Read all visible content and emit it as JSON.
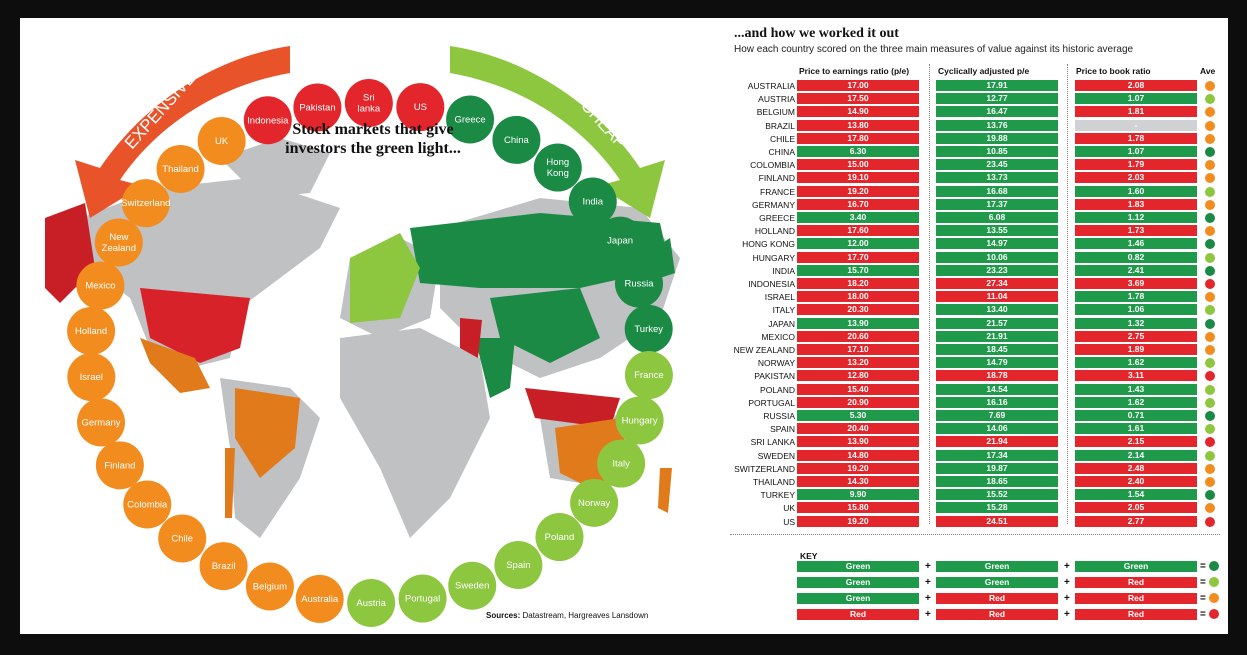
{
  "title": "Stock markets that give investors the green light...",
  "arrow_labels": {
    "expensive": "EXPENSIVE",
    "cheap": "CHEAP"
  },
  "sources_label": "Sources:",
  "sources_text": "Datastream, Hargreaves Lansdown",
  "right_title": "...and how we worked it out",
  "right_subtitle": "How each country scored on the three main measures of value against its historic average",
  "colors": {
    "green": "#1f9a4a",
    "red": "#e3262b",
    "grey": "#cfd1d3",
    "dark_green": "#1a8a45",
    "light_green": "#8dc63f",
    "orange": "#f28c1e",
    "red_dot": "#e3262b"
  },
  "circle_countries": [
    {
      "name": "UK",
      "color": "#f28c1e"
    },
    {
      "name": "Indonesia",
      "color": "#e3262b"
    },
    {
      "name": "Pakistan",
      "color": "#e3262b"
    },
    {
      "name": "Sri lanka",
      "color": "#e3262b"
    },
    {
      "name": "US",
      "color": "#e3262b"
    },
    {
      "name": "Greece",
      "color": "#1a8a45"
    },
    {
      "name": "China",
      "color": "#1a8a45"
    },
    {
      "name": "Hong Kong",
      "color": "#1a8a45"
    },
    {
      "name": "India",
      "color": "#1a8a45"
    },
    {
      "name": "Japan",
      "color": "#1a8a45"
    },
    {
      "name": "Russia",
      "color": "#1a8a45"
    },
    {
      "name": "Turkey",
      "color": "#1a8a45"
    },
    {
      "name": "France",
      "color": "#8dc63f"
    },
    {
      "name": "Hungary",
      "color": "#8dc63f"
    },
    {
      "name": "Italy",
      "color": "#8dc63f"
    },
    {
      "name": "Norway",
      "color": "#8dc63f"
    },
    {
      "name": "Poland",
      "color": "#8dc63f"
    },
    {
      "name": "Spain",
      "color": "#8dc63f"
    },
    {
      "name": "Sweden",
      "color": "#8dc63f"
    },
    {
      "name": "Portugal",
      "color": "#8dc63f"
    },
    {
      "name": "Austria",
      "color": "#8dc63f"
    },
    {
      "name": "Australia",
      "color": "#f28c1e"
    },
    {
      "name": "Belgium",
      "color": "#f28c1e"
    },
    {
      "name": "Brazil",
      "color": "#f28c1e"
    },
    {
      "name": "Chile",
      "color": "#f28c1e"
    },
    {
      "name": "Colombia",
      "color": "#f28c1e"
    },
    {
      "name": "Finland",
      "color": "#f28c1e"
    },
    {
      "name": "Germany",
      "color": "#f28c1e"
    },
    {
      "name": "Israel",
      "color": "#f28c1e"
    },
    {
      "name": "Holland",
      "color": "#f28c1e"
    },
    {
      "name": "Mexico",
      "color": "#f28c1e"
    },
    {
      "name": "New Zealand",
      "color": "#f28c1e"
    },
    {
      "name": "Switzerland",
      "color": "#f28c1e"
    },
    {
      "name": "Thailand",
      "color": "#f28c1e"
    }
  ],
  "chart_data": {
    "type": "table",
    "columns": [
      "Price to earnings ratio (p/e)",
      "Cyclically adjusted p/e",
      "Price to book ratio",
      "Ave"
    ],
    "rows": [
      {
        "country": "AUSTRALIA",
        "pe": "17.00",
        "pe_c": "red",
        "cape": "17.91",
        "cape_c": "green",
        "pb": "2.08",
        "pb_c": "red",
        "ave": "orange"
      },
      {
        "country": "AUSTRIA",
        "pe": "17.50",
        "pe_c": "red",
        "cape": "12.77",
        "cape_c": "green",
        "pb": "1.07",
        "pb_c": "green",
        "ave": "light_green"
      },
      {
        "country": "BELGIUM",
        "pe": "14.90",
        "pe_c": "red",
        "cape": "16.47",
        "cape_c": "green",
        "pb": "1.81",
        "pb_c": "red",
        "ave": "orange"
      },
      {
        "country": "BRAZIL",
        "pe": "13.80",
        "pe_c": "red",
        "cape": "13.76",
        "cape_c": "green",
        "pb": "-",
        "pb_c": "grey",
        "ave": "orange"
      },
      {
        "country": "CHILE",
        "pe": "17.80",
        "pe_c": "red",
        "cape": "19.88",
        "cape_c": "green",
        "pb": "1.78",
        "pb_c": "red",
        "ave": "orange"
      },
      {
        "country": "CHINA",
        "pe": "6.30",
        "pe_c": "green",
        "cape": "10.85",
        "cape_c": "green",
        "pb": "1.07",
        "pb_c": "green",
        "ave": "dark_green"
      },
      {
        "country": "COLOMBIA",
        "pe": "15.00",
        "pe_c": "red",
        "cape": "23.45",
        "cape_c": "green",
        "pb": "1.79",
        "pb_c": "red",
        "ave": "orange"
      },
      {
        "country": "FINLAND",
        "pe": "19.10",
        "pe_c": "red",
        "cape": "13.73",
        "cape_c": "green",
        "pb": "2.03",
        "pb_c": "red",
        "ave": "orange"
      },
      {
        "country": "FRANCE",
        "pe": "19.20",
        "pe_c": "red",
        "cape": "16.68",
        "cape_c": "green",
        "pb": "1.60",
        "pb_c": "green",
        "ave": "light_green"
      },
      {
        "country": "GERMANY",
        "pe": "16.70",
        "pe_c": "red",
        "cape": "17.37",
        "cape_c": "green",
        "pb": "1.83",
        "pb_c": "red",
        "ave": "orange"
      },
      {
        "country": "GREECE",
        "pe": "3.40",
        "pe_c": "green",
        "cape": "6.08",
        "cape_c": "green",
        "pb": "1.12",
        "pb_c": "green",
        "ave": "dark_green"
      },
      {
        "country": "HOLLAND",
        "pe": "17.60",
        "pe_c": "red",
        "cape": "13.55",
        "cape_c": "green",
        "pb": "1.73",
        "pb_c": "red",
        "ave": "orange"
      },
      {
        "country": "HONG KONG",
        "pe": "12.00",
        "pe_c": "green",
        "cape": "14.97",
        "cape_c": "green",
        "pb": "1.46",
        "pb_c": "green",
        "ave": "dark_green"
      },
      {
        "country": "HUNGARY",
        "pe": "17.70",
        "pe_c": "red",
        "cape": "10.06",
        "cape_c": "green",
        "pb": "0.82",
        "pb_c": "green",
        "ave": "light_green"
      },
      {
        "country": "INDIA",
        "pe": "15.70",
        "pe_c": "green",
        "cape": "23.23",
        "cape_c": "green",
        "pb": "2.41",
        "pb_c": "green",
        "ave": "dark_green"
      },
      {
        "country": "INDONESIA",
        "pe": "18.20",
        "pe_c": "red",
        "cape": "27.34",
        "cape_c": "red",
        "pb": "3.69",
        "pb_c": "red",
        "ave": "red"
      },
      {
        "country": "ISRAEL",
        "pe": "18.00",
        "pe_c": "red",
        "cape": "11.04",
        "cape_c": "red",
        "pb": "1.78",
        "pb_c": "green",
        "ave": "orange"
      },
      {
        "country": "ITALY",
        "pe": "20.30",
        "pe_c": "red",
        "cape": "13.40",
        "cape_c": "green",
        "pb": "1.06",
        "pb_c": "green",
        "ave": "light_green"
      },
      {
        "country": "JAPAN",
        "pe": "13.90",
        "pe_c": "green",
        "cape": "21.57",
        "cape_c": "green",
        "pb": "1.32",
        "pb_c": "green",
        "ave": "dark_green"
      },
      {
        "country": "MEXICO",
        "pe": "20.60",
        "pe_c": "red",
        "cape": "21.91",
        "cape_c": "green",
        "pb": "2.75",
        "pb_c": "red",
        "ave": "orange"
      },
      {
        "country": "NEW ZEALAND",
        "pe": "17.10",
        "pe_c": "red",
        "cape": "18.45",
        "cape_c": "green",
        "pb": "1.89",
        "pb_c": "red",
        "ave": "orange"
      },
      {
        "country": "NORWAY",
        "pe": "13.20",
        "pe_c": "red",
        "cape": "14.79",
        "cape_c": "green",
        "pb": "1.62",
        "pb_c": "green",
        "ave": "light_green"
      },
      {
        "country": "PAKISTAN",
        "pe": "12.80",
        "pe_c": "red",
        "cape": "18.78",
        "cape_c": "red",
        "pb": "3.11",
        "pb_c": "red",
        "ave": "red"
      },
      {
        "country": "POLAND",
        "pe": "15.40",
        "pe_c": "red",
        "cape": "14.54",
        "cape_c": "green",
        "pb": "1.43",
        "pb_c": "green",
        "ave": "light_green"
      },
      {
        "country": "PORTUGAL",
        "pe": "20.90",
        "pe_c": "red",
        "cape": "16.16",
        "cape_c": "green",
        "pb": "1.62",
        "pb_c": "green",
        "ave": "light_green"
      },
      {
        "country": "RUSSIA",
        "pe": "5.30",
        "pe_c": "green",
        "cape": "7.69",
        "cape_c": "green",
        "pb": "0.71",
        "pb_c": "green",
        "ave": "dark_green"
      },
      {
        "country": "SPAIN",
        "pe": "20.40",
        "pe_c": "red",
        "cape": "14.06",
        "cape_c": "green",
        "pb": "1.61",
        "pb_c": "green",
        "ave": "light_green"
      },
      {
        "country": "SRI LANKA",
        "pe": "13.90",
        "pe_c": "red",
        "cape": "21.94",
        "cape_c": "red",
        "pb": "2.15",
        "pb_c": "red",
        "ave": "red"
      },
      {
        "country": "SWEDEN",
        "pe": "14.80",
        "pe_c": "red",
        "cape": "17.34",
        "cape_c": "green",
        "pb": "2.14",
        "pb_c": "green",
        "ave": "light_green"
      },
      {
        "country": "SWITZERLAND",
        "pe": "19.20",
        "pe_c": "red",
        "cape": "19.87",
        "cape_c": "green",
        "pb": "2.48",
        "pb_c": "red",
        "ave": "orange"
      },
      {
        "country": "THAILAND",
        "pe": "14.30",
        "pe_c": "red",
        "cape": "18.65",
        "cape_c": "green",
        "pb": "2.40",
        "pb_c": "red",
        "ave": "orange"
      },
      {
        "country": "TURKEY",
        "pe": "9.90",
        "pe_c": "green",
        "cape": "15.52",
        "cape_c": "green",
        "pb": "1.54",
        "pb_c": "green",
        "ave": "dark_green"
      },
      {
        "country": "UK",
        "pe": "15.80",
        "pe_c": "red",
        "cape": "15.28",
        "cape_c": "green",
        "pb": "2.05",
        "pb_c": "red",
        "ave": "orange"
      },
      {
        "country": "US",
        "pe": "19.20",
        "pe_c": "red",
        "cape": "24.51",
        "cape_c": "red",
        "pb": "2.77",
        "pb_c": "red",
        "ave": "red"
      }
    ]
  },
  "key": {
    "title": "KEY",
    "rows": [
      {
        "cells": [
          "Green",
          "Green",
          "Green"
        ],
        "colors": [
          "green",
          "green",
          "green"
        ],
        "result": "dark_green"
      },
      {
        "cells": [
          "Green",
          "Green",
          "Red"
        ],
        "colors": [
          "green",
          "green",
          "red"
        ],
        "result": "light_green"
      },
      {
        "cells": [
          "Green",
          "Red",
          "Red"
        ],
        "colors": [
          "green",
          "red",
          "red"
        ],
        "result": "orange"
      },
      {
        "cells": [
          "Red",
          "Red",
          "Red"
        ],
        "colors": [
          "red",
          "red",
          "red"
        ],
        "result": "red_dot"
      }
    ]
  }
}
